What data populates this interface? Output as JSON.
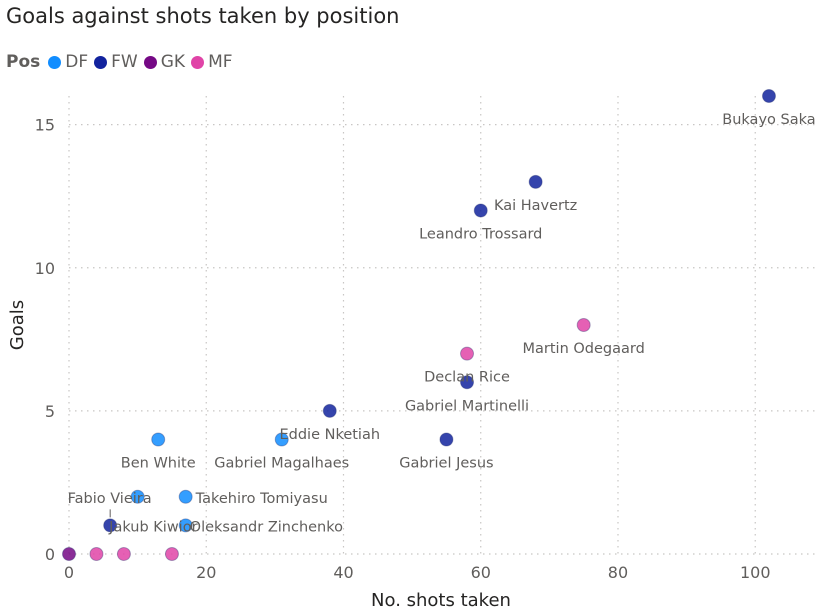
{
  "chart_data": {
    "type": "scatter",
    "title": "Goals against shots taken by position",
    "xlabel": "No. shots taken",
    "ylabel": "Goals",
    "xlim": [
      0,
      109
    ],
    "ylim": [
      0,
      16
    ],
    "xticks": [
      0,
      20,
      40,
      60,
      80,
      100
    ],
    "yticks": [
      0,
      5,
      10,
      15
    ],
    "grid": true,
    "legend": {
      "title": "Pos",
      "placement": "top-left",
      "entries": [
        {
          "name": "DF",
          "color": "#118DFF"
        },
        {
          "name": "FW",
          "color": "#12239E"
        },
        {
          "name": "GK",
          "color": "#750985"
        },
        {
          "name": "MF",
          "color": "#E044A7"
        }
      ]
    },
    "points": [
      {
        "name": "Bukayo Saka",
        "pos": "FW",
        "x": 102,
        "y": 16
      },
      {
        "name": "Kai Havertz",
        "pos": "FW",
        "x": 68,
        "y": 13
      },
      {
        "name": "Leandro Trossard",
        "pos": "FW",
        "x": 60,
        "y": 12
      },
      {
        "name": "Martin Odegaard",
        "pos": "MF",
        "x": 75,
        "y": 8
      },
      {
        "name": "Declan Rice",
        "pos": "MF",
        "x": 58,
        "y": 7
      },
      {
        "name": "Gabriel Martinelli",
        "pos": "FW",
        "x": 58,
        "y": 6
      },
      {
        "name": "Eddie Nketiah",
        "pos": "FW",
        "x": 38,
        "y": 5
      },
      {
        "name": "Gabriel Jesus",
        "pos": "FW",
        "x": 55,
        "y": 4
      },
      {
        "name": "Gabriel Magalhaes",
        "pos": "DF",
        "x": 31,
        "y": 4
      },
      {
        "name": "Ben White",
        "pos": "DF",
        "x": 13,
        "y": 4
      },
      {
        "name": "Fabio Vieira",
        "pos": "DF",
        "x": 10,
        "y": 2
      },
      {
        "name": "Takehiro Tomiyasu",
        "pos": "DF",
        "x": 17,
        "y": 2
      },
      {
        "name": "Jakub Kiwior",
        "pos": "FW",
        "x": 6,
        "y": 1
      },
      {
        "name": "Oleksandr Zinchenko",
        "pos": "DF",
        "x": 17,
        "y": 1
      },
      {
        "name": "",
        "pos": "GK",
        "x": 0,
        "y": 0
      },
      {
        "name": "",
        "pos": "MF",
        "x": 4,
        "y": 0
      },
      {
        "name": "",
        "pos": "MF",
        "x": 8,
        "y": 0
      },
      {
        "name": "",
        "pos": "MF",
        "x": 15,
        "y": 0
      }
    ]
  }
}
